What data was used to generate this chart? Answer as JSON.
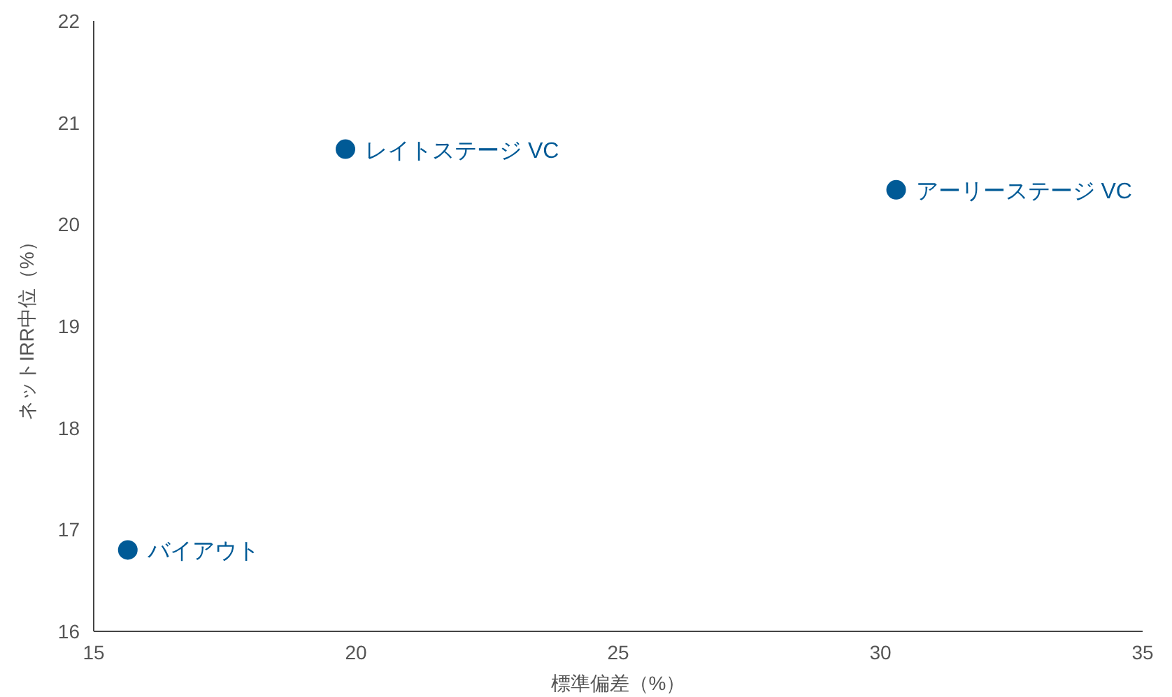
{
  "chart_data": {
    "type": "scatter",
    "xlabel": "標準偏差（%）",
    "ylabel": "ネットIRR中位（%）",
    "xlim": [
      15,
      35
    ],
    "xticks": [
      15,
      20,
      25,
      30,
      35
    ],
    "ylim": [
      16,
      22
    ],
    "yticks": [
      16,
      17,
      18,
      19,
      20,
      21,
      22
    ],
    "marker": "circle",
    "grid": false,
    "series": [
      {
        "name": "バイアウト",
        "color": "#005a96",
        "x": [
          15.65
        ],
        "values": [
          16.8
        ]
      },
      {
        "name": "レイトステージ VC",
        "color": "#005a96",
        "x": [
          19.8
        ],
        "values": [
          20.74
        ]
      },
      {
        "name": "アーリーステージ VC",
        "color": "#005a96",
        "x": [
          30.3
        ],
        "values": [
          20.34
        ]
      }
    ]
  }
}
